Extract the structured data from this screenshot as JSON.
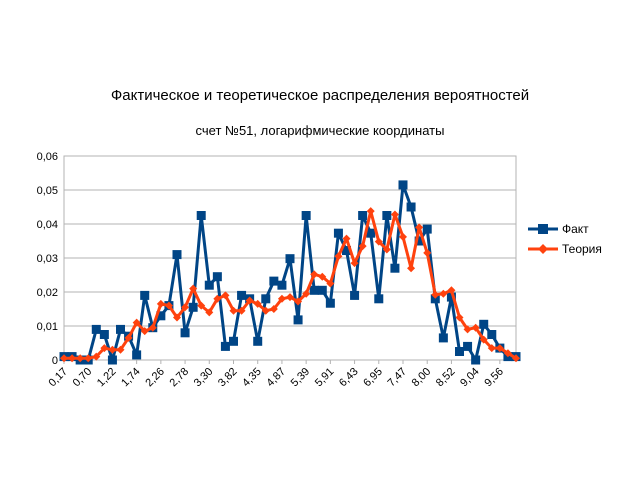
{
  "chart_data": {
    "type": "line",
    "title": "Фактическое и теоретическое распределения вероятностей",
    "subtitle": "счет №51, логарифмические координаты",
    "xlabel": "",
    "ylabel": "",
    "ylim": [
      0,
      0.06
    ],
    "yticks": [
      "0",
      "0,01",
      "0,02",
      "0,03",
      "0,04",
      "0,05",
      "0,06"
    ],
    "xtick_labels": [
      "0,17",
      "0,70",
      "1,22",
      "1,74",
      "2,26",
      "2,78",
      "3,30",
      "3,82",
      "4,35",
      "4,87",
      "5,39",
      "5,91",
      "6,43",
      "6,95",
      "7,47",
      "8,00",
      "8,52",
      "9,04",
      "9,56"
    ],
    "grid": true,
    "legend_position": "right",
    "series": [
      {
        "name": "Факт",
        "color": "#004586",
        "marker": "square",
        "values": [
          0.001,
          0.001,
          0.0,
          0.0,
          0.009,
          0.0075,
          0.0,
          0.009,
          0.007,
          0.0015,
          0.019,
          0.0095,
          0.013,
          0.016,
          0.031,
          0.008,
          0.0155,
          0.0425,
          0.022,
          0.0245,
          0.004,
          0.0055,
          0.019,
          0.018,
          0.0055,
          0.018,
          0.0232,
          0.022,
          0.0298,
          0.0118,
          0.0425,
          0.0205,
          0.0205,
          0.0167,
          0.0373,
          0.0322,
          0.019,
          0.0425,
          0.0373,
          0.018,
          0.0425,
          0.027,
          0.0515,
          0.045,
          0.035,
          0.0385,
          0.018,
          0.0065,
          0.0185,
          0.0025,
          0.004,
          0.0,
          0.0105,
          0.0075,
          0.0035,
          0.001,
          0.001
        ]
      },
      {
        "name": "Теория",
        "color": "#ff420e",
        "marker": "diamond",
        "values": [
          0.0005,
          0.0005,
          0.0005,
          0.0005,
          0.001,
          0.0035,
          0.003,
          0.003,
          0.0065,
          0.011,
          0.0085,
          0.0095,
          0.0165,
          0.016,
          0.0125,
          0.0155,
          0.021,
          0.016,
          0.014,
          0.018,
          0.019,
          0.0145,
          0.0145,
          0.0175,
          0.0165,
          0.0145,
          0.015,
          0.018,
          0.0185,
          0.0172,
          0.0195,
          0.0252,
          0.0245,
          0.0225,
          0.0305,
          0.0357,
          0.0285,
          0.0335,
          0.0438,
          0.0348,
          0.0325,
          0.0428,
          0.0362,
          0.027,
          0.039,
          0.0315,
          0.0192,
          0.0195,
          0.0205,
          0.0125,
          0.009,
          0.0095,
          0.006,
          0.0035,
          0.0035,
          0.002,
          0.0005
        ]
      }
    ]
  }
}
